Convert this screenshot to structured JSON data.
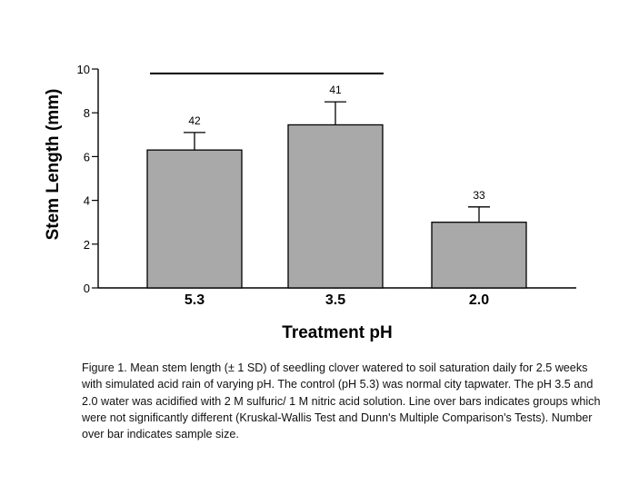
{
  "chart_data": {
    "type": "bar",
    "title": "",
    "xlabel": "Treatment pH",
    "ylabel": "Stem Length (mm)",
    "ylim": [
      0,
      10
    ],
    "yticks": [
      0,
      2,
      4,
      6,
      8,
      10
    ],
    "categories": [
      "5.3",
      "3.5",
      "2.0"
    ],
    "values": [
      6.3,
      7.45,
      3.0
    ],
    "sd": [
      0.8,
      1.05,
      0.7
    ],
    "sample_sizes": [
      "42",
      "41",
      "33"
    ],
    "annotations": [
      {
        "type": "not-significant-line",
        "spans": [
          "5.3",
          "3.5"
        ],
        "y": 9.8
      }
    ],
    "colors": {
      "bar": "#a9a9a9",
      "line": "#000000"
    }
  },
  "caption": "Figure 1.  Mean stem length (± 1 SD) of seedling clover watered to soil saturation daily for 2.5 weeks with simulated acid rain of varying pH.  The control (pH 5.3) was normal city tapwater.   The pH 3.5 and 2.0 water was acidified with 2 M sulfuric/ 1 M nitric acid solution.  Line over bars indicates groups which were not significantly different (Kruskal-Wallis Test and Dunn's Multiple Comparison's Tests).  Number over bar indicates sample size."
}
